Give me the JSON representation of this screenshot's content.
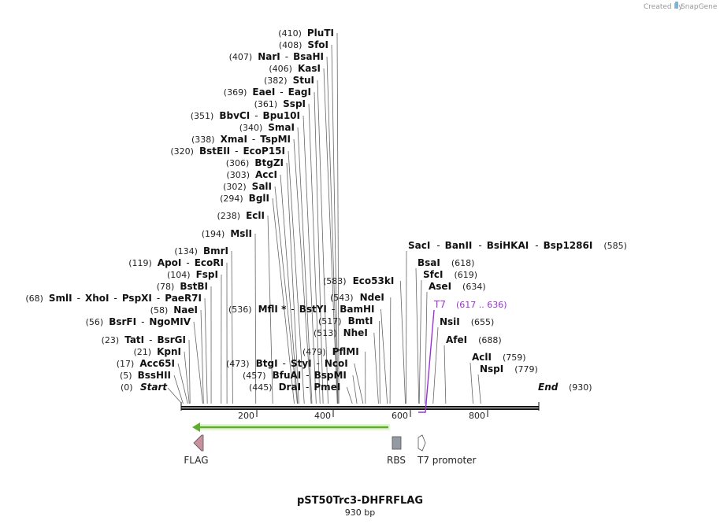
{
  "credit": {
    "prefix": "Created by",
    "brand": "SnapGene"
  },
  "title": "pST50Trc3-DHFRFLAG",
  "length_label": "930 bp",
  "ruler_ticks": [
    "200",
    "400",
    "600",
    "800"
  ],
  "start_label": {
    "pos": "(0)",
    "name": "Start"
  },
  "end_label": {
    "pos": "(930)",
    "name": "End"
  },
  "left_sites": [
    {
      "pos": "(410)",
      "names": [
        "PluTI"
      ]
    },
    {
      "pos": "(408)",
      "names": [
        "SfoI"
      ]
    },
    {
      "pos": "(407)",
      "names": [
        "NarI",
        "BsaHI"
      ]
    },
    {
      "pos": "(406)",
      "names": [
        "KasI"
      ]
    },
    {
      "pos": "(382)",
      "names": [
        "StuI"
      ]
    },
    {
      "pos": "(369)",
      "names": [
        "EaeI",
        "EagI"
      ]
    },
    {
      "pos": "(361)",
      "names": [
        "SspI"
      ]
    },
    {
      "pos": "(351)",
      "names": [
        "BbvCI",
        "Bpu10I"
      ]
    },
    {
      "pos": "(340)",
      "names": [
        "SmaI"
      ]
    },
    {
      "pos": "(338)",
      "names": [
        "XmaI",
        "TspMI"
      ]
    },
    {
      "pos": "(320)",
      "names": [
        "BstEII",
        "EcoP15I"
      ]
    },
    {
      "pos": "(306)",
      "names": [
        "BtgZI"
      ]
    },
    {
      "pos": "(303)",
      "names": [
        "AccI"
      ]
    },
    {
      "pos": "(302)",
      "names": [
        "SalI"
      ]
    },
    {
      "pos": "(294)",
      "names": [
        "BglI"
      ]
    },
    {
      "pos": "(238)",
      "names": [
        "EclI"
      ]
    },
    {
      "pos": "(194)",
      "names": [
        "MslI"
      ]
    },
    {
      "pos": "(134)",
      "names": [
        "BmrI"
      ]
    },
    {
      "pos": "(119)",
      "names": [
        "ApoI",
        "EcoRI"
      ]
    },
    {
      "pos": "(104)",
      "names": [
        "FspI"
      ]
    },
    {
      "pos": "(78)",
      "names": [
        "BstBI"
      ]
    },
    {
      "pos": "(68)",
      "names": [
        "SmlI",
        "XhoI",
        "PspXI",
        "PaeR7I"
      ]
    },
    {
      "pos": "(58)",
      "names": [
        "NaeI"
      ]
    },
    {
      "pos": "(56)",
      "names": [
        "BsrFI",
        "NgoMIV"
      ]
    },
    {
      "pos": "(23)",
      "names": [
        "TatI",
        "BsrGI"
      ]
    },
    {
      "pos": "(21)",
      "names": [
        "KpnI"
      ]
    },
    {
      "pos": "(17)",
      "names": [
        "Acc65I"
      ]
    },
    {
      "pos": "(5)",
      "names": [
        "BssHII"
      ]
    }
  ],
  "middle_sites": [
    {
      "pos": "(583)",
      "names": [
        "Eco53kI"
      ]
    },
    {
      "pos": "(543)",
      "names": [
        "NdeI"
      ]
    },
    {
      "pos": "(536)",
      "names": [
        "MflI *",
        "BstYI",
        "BamHI"
      ]
    },
    {
      "pos": "(517)",
      "names": [
        "BmtI"
      ]
    },
    {
      "pos": "(513)",
      "names": [
        "NheI"
      ]
    },
    {
      "pos": "(479)",
      "names": [
        "PflMI"
      ]
    },
    {
      "pos": "(473)",
      "names": [
        "BtgI",
        "StyI",
        "NcoI"
      ]
    },
    {
      "pos": "(457)",
      "names": [
        "BfuAI",
        "BspMI"
      ]
    },
    {
      "pos": "(445)",
      "names": [
        "DraI",
        "PmeI"
      ]
    }
  ],
  "right_sites": [
    {
      "pos": "(585)",
      "names": [
        "SacI",
        "BanII",
        "BsiHKAI",
        "Bsp1286I"
      ]
    },
    {
      "pos": "(618)",
      "names": [
        "BsaI"
      ]
    },
    {
      "pos": "(619)",
      "names": [
        "SfcI"
      ]
    },
    {
      "pos": "(634)",
      "names": [
        "AseI"
      ]
    },
    {
      "pos": "(655)",
      "names": [
        "NsiI"
      ]
    },
    {
      "pos": "(688)",
      "names": [
        "AfeI"
      ]
    },
    {
      "pos": "(759)",
      "names": [
        "AclI"
      ]
    },
    {
      "pos": "(779)",
      "names": [
        "NspI"
      ]
    }
  ],
  "t7_label": {
    "name": "T7",
    "range": "(617 .. 636)"
  },
  "features": [
    {
      "label": "FLAG",
      "color": "#c9909e"
    },
    {
      "label": "RBS",
      "color": "#939aa1"
    },
    {
      "label": "T7 promoter",
      "color": "#ffffff"
    }
  ],
  "orf_arrow_color": "#7ac943",
  "t7_color": "#9b30d9"
}
